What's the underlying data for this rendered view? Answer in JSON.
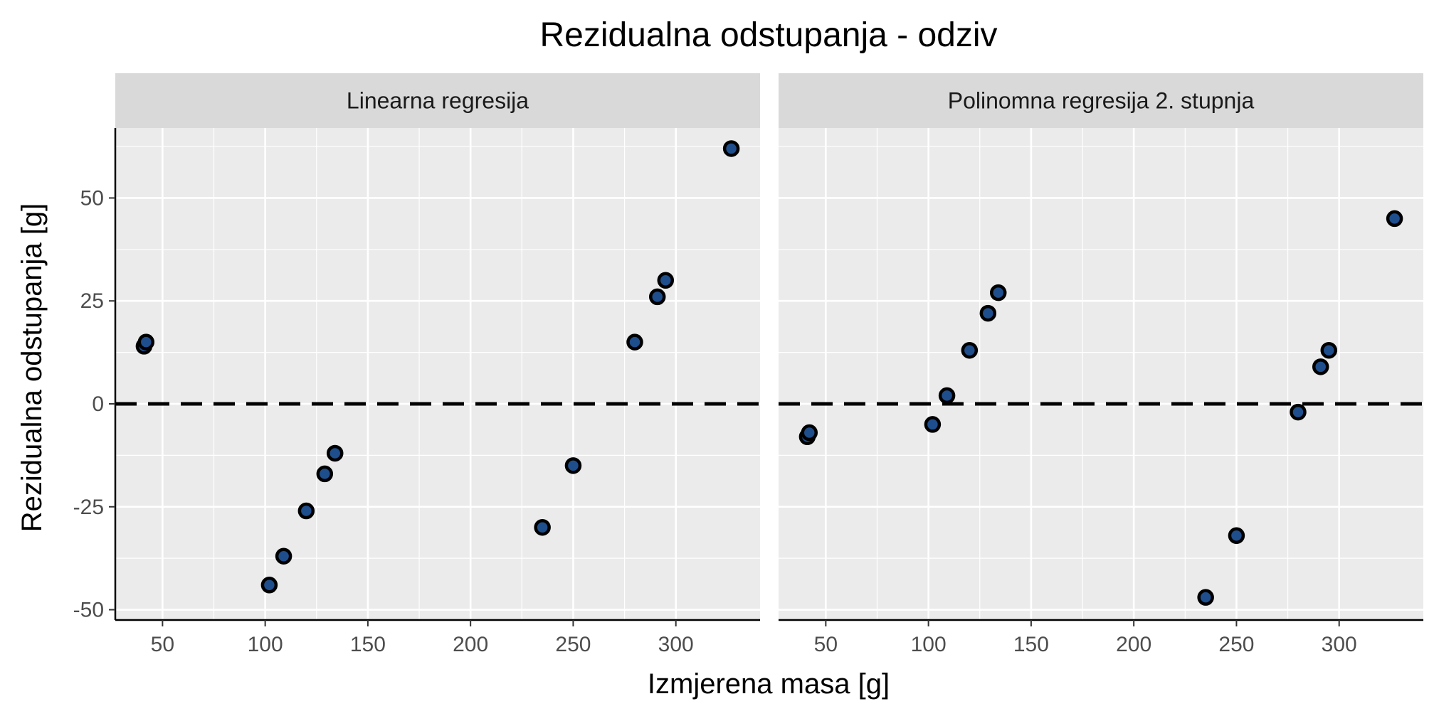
{
  "chart_data": {
    "type": "scatter",
    "title": "Rezidualna odstupanja - odziv",
    "xlabel": "Izmjerena masa [g]",
    "ylabel": "Rezidualna odstupanja [g]",
    "xlim": [
      27,
      341
    ],
    "ylim": [
      -52.5,
      67
    ],
    "x_ticks": [
      50,
      100,
      150,
      200,
      250,
      300
    ],
    "y_ticks": [
      -50,
      -25,
      0,
      25,
      50
    ],
    "x_tick_labels": [
      "50",
      "100",
      "150",
      "200",
      "250",
      "300"
    ],
    "y_tick_labels": [
      "-50",
      "-25",
      "0",
      "25",
      "50"
    ],
    "grid": true,
    "reference_line": {
      "y": 0,
      "style": "dashed"
    },
    "point_fill": "#1f4e8c",
    "point_outline": "#000000",
    "panel_bg": "#ebebeb",
    "strip_bg": "#d9d9d9",
    "panels": [
      {
        "label": "Linearna regresija",
        "points": [
          {
            "x": 41,
            "y": 14
          },
          {
            "x": 42,
            "y": 15
          },
          {
            "x": 102,
            "y": -44
          },
          {
            "x": 109,
            "y": -37
          },
          {
            "x": 120,
            "y": -26
          },
          {
            "x": 129,
            "y": -17
          },
          {
            "x": 134,
            "y": -12
          },
          {
            "x": 235,
            "y": -30
          },
          {
            "x": 250,
            "y": -15
          },
          {
            "x": 280,
            "y": 15
          },
          {
            "x": 291,
            "y": 26
          },
          {
            "x": 295,
            "y": 30
          },
          {
            "x": 327,
            "y": 62
          }
        ]
      },
      {
        "label": "Polinomna regresija 2. stupnja",
        "points": [
          {
            "x": 41,
            "y": -8
          },
          {
            "x": 42,
            "y": -7
          },
          {
            "x": 102,
            "y": -5
          },
          {
            "x": 109,
            "y": 2
          },
          {
            "x": 120,
            "y": 13
          },
          {
            "x": 129,
            "y": 22
          },
          {
            "x": 134,
            "y": 27
          },
          {
            "x": 235,
            "y": -47
          },
          {
            "x": 250,
            "y": -32
          },
          {
            "x": 280,
            "y": -2
          },
          {
            "x": 291,
            "y": 9
          },
          {
            "x": 295,
            "y": 13
          },
          {
            "x": 327,
            "y": 45
          }
        ]
      }
    ]
  }
}
